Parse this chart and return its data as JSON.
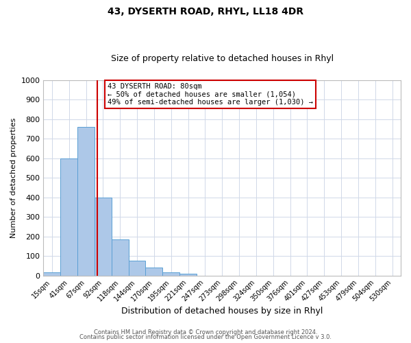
{
  "title": "43, DYSERTH ROAD, RHYL, LL18 4DR",
  "subtitle": "Size of property relative to detached houses in Rhyl",
  "xlabel": "Distribution of detached houses by size in Rhyl",
  "ylabel": "Number of detached properties",
  "bar_labels": [
    "15sqm",
    "41sqm",
    "67sqm",
    "92sqm",
    "118sqm",
    "144sqm",
    "170sqm",
    "195sqm",
    "221sqm",
    "247sqm",
    "273sqm",
    "298sqm",
    "324sqm",
    "350sqm",
    "376sqm",
    "401sqm",
    "427sqm",
    "453sqm",
    "479sqm",
    "504sqm",
    "530sqm"
  ],
  "bar_heights": [
    15,
    600,
    760,
    400,
    185,
    75,
    40,
    15,
    10,
    0,
    0,
    0,
    0,
    0,
    0,
    0,
    0,
    0,
    0,
    0,
    0
  ],
  "bar_color": "#adc8e8",
  "bar_edgecolor": "#5a9fd4",
  "vline_x_index": 2.65,
  "vline_color": "#cc0000",
  "annotation_title": "43 DYSERTH ROAD: 80sqm",
  "annotation_line1": "← 50% of detached houses are smaller (1,054)",
  "annotation_line2": "49% of semi-detached houses are larger (1,030) →",
  "annotation_box_color": "#ffffff",
  "annotation_box_edgecolor": "#cc0000",
  "ylim": [
    0,
    1000
  ],
  "yticks": [
    0,
    100,
    200,
    300,
    400,
    500,
    600,
    700,
    800,
    900,
    1000
  ],
  "footer_line1": "Contains HM Land Registry data © Crown copyright and database right 2024.",
  "footer_line2": "Contains public sector information licensed under the Open Government Licence v 3.0.",
  "background_color": "#ffffff",
  "grid_color": "#d0d8e8"
}
